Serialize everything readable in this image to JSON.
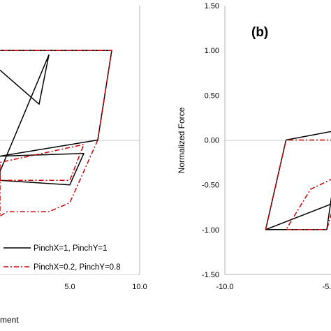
{
  "chart_data": [
    {
      "panel": "a",
      "type": "line",
      "xlabel": "ment",
      "ylabel": "",
      "xlim": [
        0,
        10
      ],
      "ylim": [
        -1.5,
        1.5
      ],
      "x_ticks": [
        "5.0",
        "10.0"
      ],
      "grid": false,
      "legend": {
        "position": "bottom-right",
        "entries": [
          "PinchX=1, PinchY=1",
          "PinchX=0.2, PinchY=0.8"
        ]
      },
      "series": [
        {
          "name": "PinchX=1, PinchY=1",
          "color": "#000000",
          "dash": "solid",
          "points": [
            [
              -2,
              1.0
            ],
            [
              8.0,
              1.0
            ],
            [
              7.0,
              0.0
            ],
            [
              0,
              -0.18
            ],
            [
              6.0,
              -0.15
            ],
            [
              5.0,
              -0.5
            ],
            [
              0,
              -0.45
            ],
            [
              0,
              -0.35
            ],
            [
              3.5,
              0.95
            ],
            [
              2.8,
              0.4
            ],
            [
              0,
              0.78
            ]
          ]
        },
        {
          "name": "PinchX=0.2, PinchY=0.8",
          "color": "#cc0000",
          "dash": "dash-dot",
          "points": [
            [
              -2,
              1.0
            ],
            [
              8.0,
              1.0
            ],
            [
              7.0,
              0.0
            ],
            [
              5.0,
              -0.7
            ],
            [
              3.5,
              -0.8
            ],
            [
              0.5,
              -0.8
            ],
            [
              0,
              -0.85
            ],
            [
              0,
              -0.25
            ],
            [
              6.0,
              -0.05
            ],
            [
              5.0,
              -0.45
            ],
            [
              0,
              -0.45
            ]
          ]
        }
      ]
    },
    {
      "panel": "b",
      "label": "(b)",
      "type": "line",
      "xlabel": "",
      "ylabel": "Normalized Force",
      "xlim": [
        -10,
        0
      ],
      "ylim": [
        -1.5,
        1.5
      ],
      "x_ticks": [
        "-10.0",
        "-5."
      ],
      "y_ticks": [
        "1.50",
        "1.00",
        "0.50",
        "0.00",
        "-0.50",
        "-1.00",
        "-1.50"
      ],
      "grid": false,
      "series": [
        {
          "name": "PinchX=1, PinchY=1",
          "color": "#000000",
          "dash": "solid",
          "points": [
            [
              -8.0,
              -1.0
            ],
            [
              -7.0,
              0.0
            ],
            [
              -3.5,
              0.15
            ],
            [
              -3.5,
              -1.0
            ],
            [
              -4.5,
              -0.2
            ],
            [
              -5.0,
              -1.0
            ],
            [
              -8.0,
              -1.0
            ],
            [
              -3.5,
              -0.6
            ],
            [
              -3.5,
              -0.82
            ]
          ]
        },
        {
          "name": "PinchX=0.2, PinchY=0.8",
          "color": "#cc0000",
          "dash": "dash-dot",
          "points": [
            [
              -8.0,
              -1.0
            ],
            [
              -7.0,
              0.0
            ],
            [
              -3.5,
              0.0
            ],
            [
              -4.5,
              -0.6
            ],
            [
              -5.0,
              -1.0
            ],
            [
              -7.0,
              -1.0
            ],
            [
              -5.8,
              -0.55
            ],
            [
              -3.5,
              -0.3
            ],
            [
              -4.0,
              -0.5
            ],
            [
              -4.3,
              -0.35
            ]
          ]
        }
      ]
    }
  ]
}
